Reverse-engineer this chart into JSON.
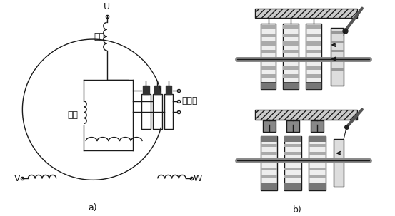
{
  "bg_color": "#ffffff",
  "line_color": "#1a1a1a",
  "label_a": "a)",
  "label_b": "b)",
  "label_U": "U",
  "label_V": "V",
  "label_W": "W",
  "label_dingzi": "定子",
  "label_zhuanzi": "转子",
  "label_jidianhuan": "集电环",
  "font_size": 9,
  "gray_light": "#dddddd",
  "gray_mid": "#999999",
  "gray_dark": "#555555"
}
